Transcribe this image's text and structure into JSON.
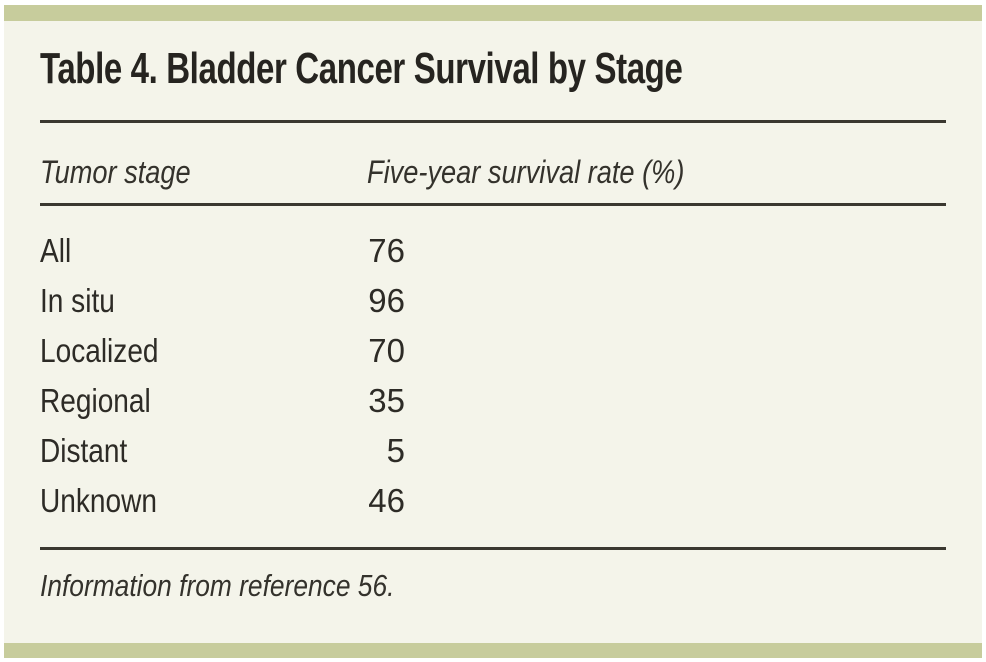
{
  "table": {
    "title": "Table 4. Bladder Cancer Survival by Stage",
    "columns": {
      "stage": "Tumor stage",
      "rate": "Five-year survival rate (%)"
    },
    "rows": [
      {
        "stage": "All",
        "rate": "76"
      },
      {
        "stage": "In situ",
        "rate": "96"
      },
      {
        "stage": "Localized",
        "rate": "70"
      },
      {
        "stage": "Regional",
        "rate": "35"
      },
      {
        "stage": "Distant",
        "rate": "5"
      },
      {
        "stage": "Unknown",
        "rate": "46"
      }
    ],
    "footnote": "Information from reference 56."
  },
  "colors": {
    "accent_bar": "#c7cc9c",
    "panel_background": "#f4f4ea",
    "text": "#2d2b26",
    "rule": "#3a3830"
  },
  "chart_data": {
    "type": "table",
    "title": "Table 4. Bladder Cancer Survival by Stage",
    "categories": [
      "All",
      "In situ",
      "Localized",
      "Regional",
      "Distant",
      "Unknown"
    ],
    "values": [
      76,
      96,
      70,
      35,
      5,
      46
    ],
    "xlabel": "Tumor stage",
    "ylabel": "Five-year survival rate (%)",
    "annotations": [
      "Information from reference 56."
    ]
  }
}
